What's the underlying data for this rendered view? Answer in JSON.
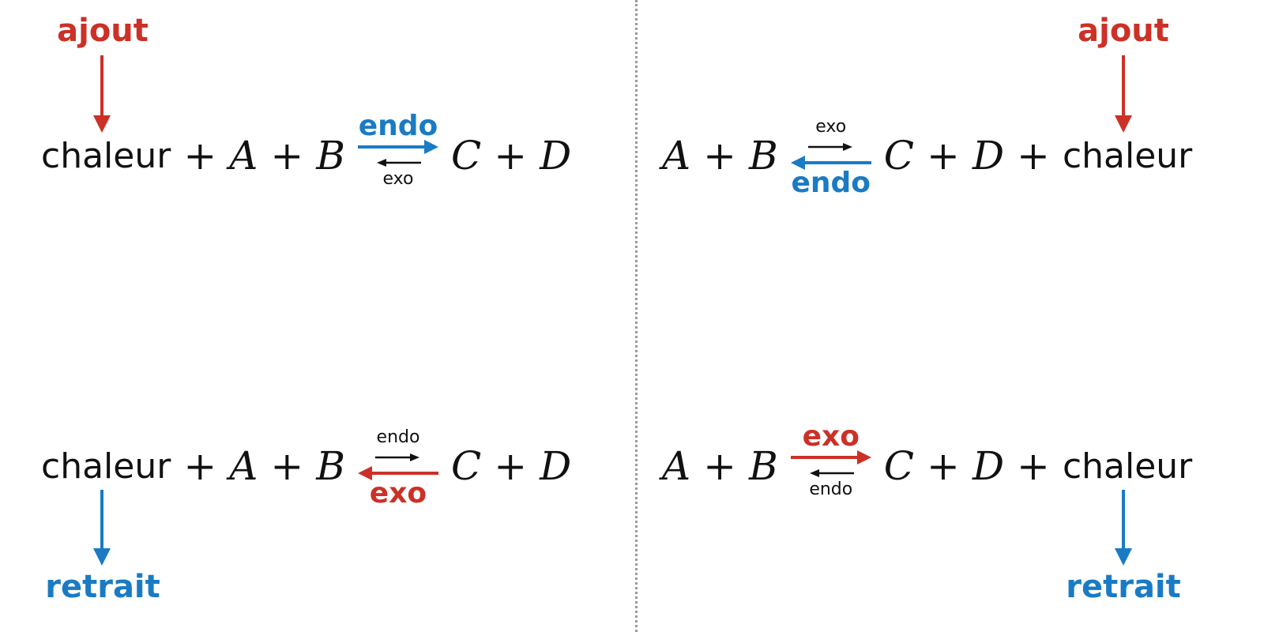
{
  "colors": {
    "red": "#cc3127",
    "blue": "#1a7bc4",
    "black": "#111111",
    "divider": "#9a9a9a"
  },
  "terms": {
    "heat": "chaleur",
    "plus": "+",
    "A": "A",
    "B": "B",
    "C": "C",
    "D": "D"
  },
  "labels": {
    "endo": "endo",
    "exo": "exo",
    "add": "ajout",
    "remove": "retrait"
  },
  "panels": [
    {
      "id": "top-left",
      "callout": "ajout",
      "callout_color": "red",
      "forward_label": "endo",
      "reverse_label": "exo",
      "highlighted": "forward",
      "highlight_color": "blue"
    },
    {
      "id": "top-right",
      "callout": "ajout",
      "callout_color": "red",
      "forward_label": "exo",
      "reverse_label": "endo",
      "highlighted": "reverse",
      "highlight_color": "blue"
    },
    {
      "id": "bottom-left",
      "callout": "retrait",
      "callout_color": "blue",
      "forward_label": "endo",
      "reverse_label": "exo",
      "highlighted": "reverse",
      "highlight_color": "red"
    },
    {
      "id": "bottom-right",
      "callout": "retrait",
      "callout_color": "blue",
      "forward_label": "exo",
      "reverse_label": "endo",
      "highlighted": "forward",
      "highlight_color": "red"
    }
  ]
}
